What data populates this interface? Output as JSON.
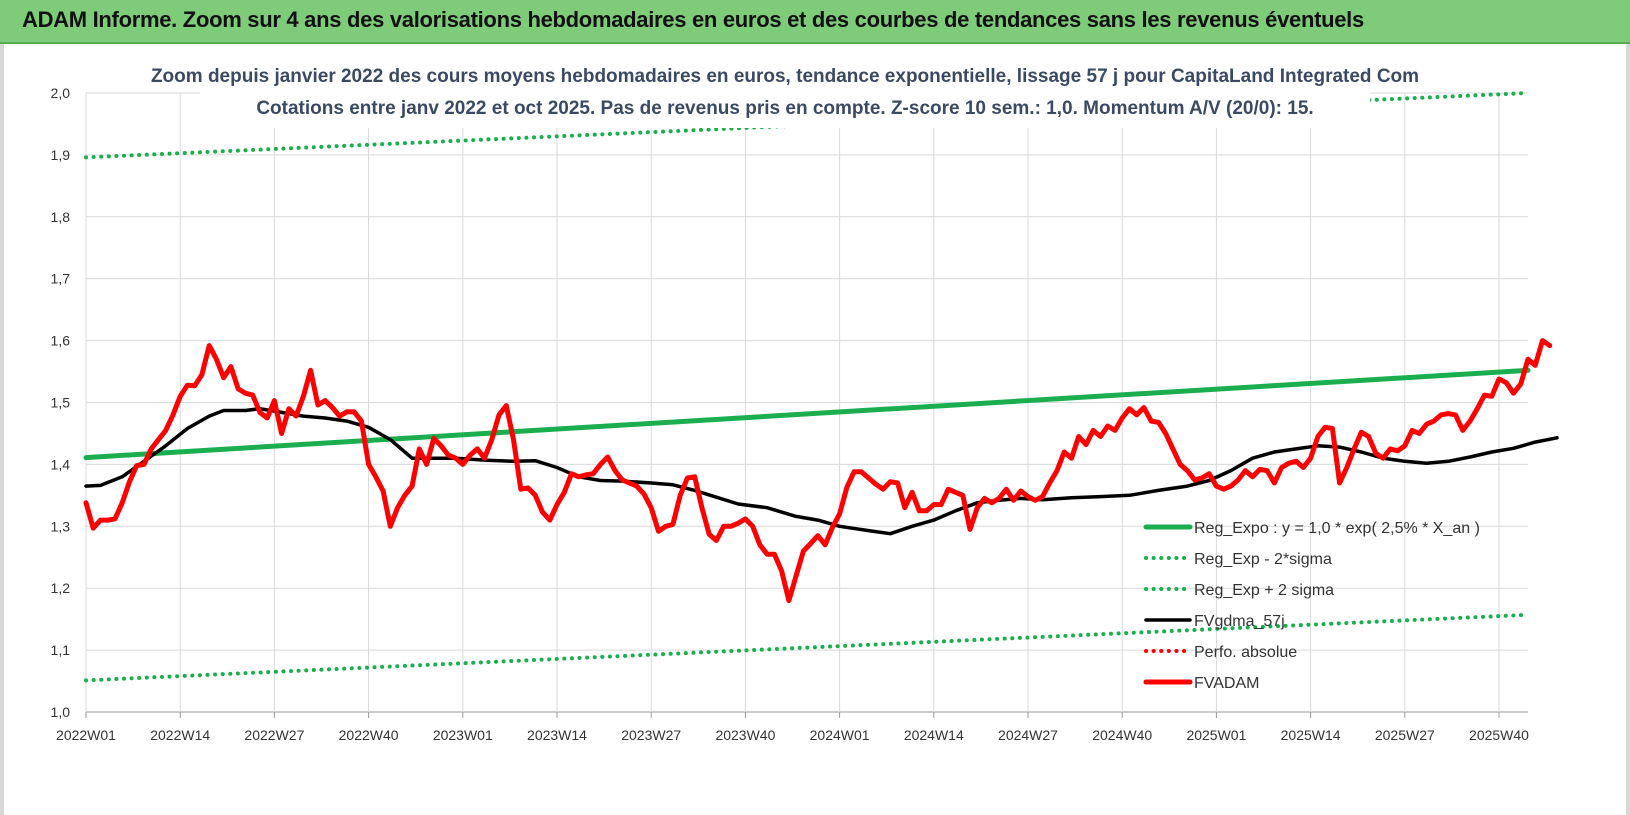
{
  "header": {
    "title": "ADAM Informe. Zoom sur 4 ans des valorisations hebdomadaires en euros et des courbes de tendances sans les revenus éventuels"
  },
  "colors": {
    "header_bg": "#7ecb7a",
    "reg_green": "#1aae4f",
    "red": "#ff0000",
    "black": "#000000",
    "grid": "#d9d9d9",
    "title_text": "#3b4a63"
  },
  "chart_data": {
    "type": "line",
    "title": "Zoom depuis janvier 2022 des cours moyens hebdomadaires en euros, tendance exponentielle, lissage 57 j pour CapitaLand Integrated Com",
    "subtitle": "Cotations entre janv 2022 et oct 2025. Pas de revenus pris en compte. Z-score 10 sem.: 1,0. Momentum A/V (20/0): 15.",
    "xlabel": "",
    "ylabel": "",
    "x_tick_labels": [
      "2022W01",
      "2022W14",
      "2022W27",
      "2022W40",
      "2023W01",
      "2023W14",
      "2023W27",
      "2023W40",
      "2024W01",
      "2024W14",
      "2024W27",
      "2024W40",
      "2025W01",
      "2025W14",
      "2025W27",
      "2025W40"
    ],
    "y_ticks": [
      "1,0",
      "1,1",
      "1,2",
      "1,3",
      "1,4",
      "1,5",
      "1,6",
      "1,7",
      "1,8",
      "1,9",
      "2,0"
    ],
    "ylim": [
      1.0,
      2.0
    ],
    "n_weeks": 200,
    "grid": true,
    "legend_position": "bottom-right",
    "series": [
      {
        "name": "Reg_Expo : y = 1,0 * exp( 2,5% *  X_an )",
        "style": "solid-thick",
        "color": "#1aae4f",
        "points": [
          [
            0,
            1.411
          ],
          [
            199,
            1.552
          ]
        ]
      },
      {
        "name": "Reg_Exp - 2*sigma",
        "style": "dotted",
        "color": "#1aae4f",
        "points": [
          [
            0,
            1.051
          ],
          [
            199,
            1.157
          ]
        ]
      },
      {
        "name": "Reg_Exp + 2 sigma",
        "style": "dotted",
        "color": "#1aae4f",
        "points": [
          [
            0,
            1.896
          ],
          [
            199,
            2.0
          ]
        ]
      },
      {
        "name": "FVgdma_57j",
        "style": "solid",
        "color": "#000000",
        "points": [
          [
            0,
            1.365
          ],
          [
            2,
            1.366
          ],
          [
            5,
            1.38
          ],
          [
            8,
            1.405
          ],
          [
            11,
            1.43
          ],
          [
            14,
            1.458
          ],
          [
            17,
            1.478
          ],
          [
            19,
            1.487
          ],
          [
            22,
            1.487
          ],
          [
            24,
            1.49
          ],
          [
            27,
            1.484
          ],
          [
            30,
            1.478
          ],
          [
            33,
            1.475
          ],
          [
            36,
            1.47
          ],
          [
            39,
            1.46
          ],
          [
            42,
            1.44
          ],
          [
            45,
            1.41
          ],
          [
            48,
            1.41
          ],
          [
            51,
            1.41
          ],
          [
            55,
            1.407
          ],
          [
            59,
            1.405
          ],
          [
            62,
            1.406
          ],
          [
            65,
            1.395
          ],
          [
            68,
            1.38
          ],
          [
            71,
            1.374
          ],
          [
            74,
            1.373
          ],
          [
            78,
            1.37
          ],
          [
            81,
            1.367
          ],
          [
            84,
            1.358
          ],
          [
            87,
            1.347
          ],
          [
            90,
            1.336
          ],
          [
            94,
            1.33
          ],
          [
            98,
            1.316
          ],
          [
            101,
            1.31
          ],
          [
            104,
            1.3
          ],
          [
            108,
            1.293
          ],
          [
            111,
            1.288
          ],
          [
            114,
            1.3
          ],
          [
            117,
            1.31
          ],
          [
            120,
            1.325
          ],
          [
            123,
            1.338
          ],
          [
            126,
            1.342
          ],
          [
            129,
            1.345
          ],
          [
            132,
            1.343
          ],
          [
            136,
            1.346
          ],
          [
            140,
            1.348
          ],
          [
            144,
            1.35
          ],
          [
            148,
            1.358
          ],
          [
            152,
            1.365
          ],
          [
            155,
            1.374
          ],
          [
            158,
            1.39
          ],
          [
            161,
            1.41
          ],
          [
            164,
            1.42
          ],
          [
            167,
            1.425
          ],
          [
            170,
            1.43
          ],
          [
            173,
            1.428
          ],
          [
            176,
            1.42
          ],
          [
            179,
            1.41
          ],
          [
            182,
            1.405
          ],
          [
            185,
            1.402
          ],
          [
            188,
            1.405
          ],
          [
            191,
            1.412
          ],
          [
            194,
            1.42
          ],
          [
            197,
            1.426
          ],
          [
            200,
            1.436
          ],
          [
            203,
            1.443
          ]
        ]
      },
      {
        "name": "Perfo. absolue",
        "style": "dotted",
        "color": "#ff0000",
        "points": []
      },
      {
        "name": "FVADAM",
        "style": "solid-thick",
        "color": "#ff0000",
        "points": [
          [
            0,
            1.338
          ],
          [
            1,
            1.297
          ],
          [
            2,
            1.31
          ],
          [
            3,
            1.31
          ],
          [
            4,
            1.312
          ],
          [
            5,
            1.338
          ],
          [
            6,
            1.372
          ],
          [
            7,
            1.398
          ],
          [
            8,
            1.4
          ],
          [
            9,
            1.425
          ],
          [
            10,
            1.44
          ],
          [
            11,
            1.455
          ],
          [
            12,
            1.48
          ],
          [
            13,
            1.51
          ],
          [
            14,
            1.528
          ],
          [
            15,
            1.527
          ],
          [
            16,
            1.545
          ],
          [
            17,
            1.592
          ],
          [
            18,
            1.57
          ],
          [
            19,
            1.54
          ],
          [
            20,
            1.558
          ],
          [
            21,
            1.522
          ],
          [
            22,
            1.515
          ],
          [
            23,
            1.512
          ],
          [
            24,
            1.484
          ],
          [
            25,
            1.475
          ],
          [
            26,
            1.503
          ],
          [
            27,
            1.45
          ],
          [
            28,
            1.49
          ],
          [
            29,
            1.478
          ],
          [
            30,
            1.51
          ],
          [
            31,
            1.552
          ],
          [
            32,
            1.496
          ],
          [
            33,
            1.503
          ],
          [
            34,
            1.492
          ],
          [
            35,
            1.478
          ],
          [
            36,
            1.485
          ],
          [
            37,
            1.485
          ],
          [
            38,
            1.47
          ],
          [
            39,
            1.4
          ],
          [
            40,
            1.38
          ],
          [
            41,
            1.357
          ],
          [
            42,
            1.3
          ],
          [
            43,
            1.33
          ],
          [
            44,
            1.35
          ],
          [
            45,
            1.365
          ],
          [
            46,
            1.425
          ],
          [
            47,
            1.4
          ],
          [
            48,
            1.442
          ],
          [
            49,
            1.43
          ],
          [
            50,
            1.415
          ],
          [
            51,
            1.41
          ],
          [
            52,
            1.4
          ],
          [
            53,
            1.415
          ],
          [
            54,
            1.425
          ],
          [
            55,
            1.41
          ],
          [
            56,
            1.44
          ],
          [
            57,
            1.48
          ],
          [
            58,
            1.495
          ],
          [
            59,
            1.44
          ],
          [
            60,
            1.36
          ],
          [
            61,
            1.362
          ],
          [
            62,
            1.35
          ],
          [
            63,
            1.323
          ],
          [
            64,
            1.31
          ],
          [
            65,
            1.335
          ],
          [
            66,
            1.355
          ],
          [
            67,
            1.385
          ],
          [
            68,
            1.38
          ],
          [
            69,
            1.383
          ],
          [
            70,
            1.385
          ],
          [
            71,
            1.4
          ],
          [
            72,
            1.412
          ],
          [
            73,
            1.39
          ],
          [
            74,
            1.375
          ],
          [
            75,
            1.37
          ],
          [
            76,
            1.365
          ],
          [
            77,
            1.352
          ],
          [
            78,
            1.33
          ],
          [
            79,
            1.292
          ],
          [
            80,
            1.3
          ],
          [
            81,
            1.303
          ],
          [
            82,
            1.35
          ],
          [
            83,
            1.378
          ],
          [
            84,
            1.38
          ],
          [
            85,
            1.33
          ],
          [
            86,
            1.287
          ],
          [
            87,
            1.277
          ],
          [
            88,
            1.3
          ],
          [
            89,
            1.3
          ],
          [
            90,
            1.305
          ],
          [
            91,
            1.312
          ],
          [
            92,
            1.3
          ],
          [
            93,
            1.27
          ],
          [
            94,
            1.255
          ],
          [
            95,
            1.255
          ],
          [
            96,
            1.228
          ],
          [
            97,
            1.18
          ],
          [
            98,
            1.22
          ],
          [
            99,
            1.26
          ],
          [
            100,
            1.272
          ],
          [
            101,
            1.285
          ],
          [
            102,
            1.27
          ],
          [
            103,
            1.298
          ],
          [
            104,
            1.32
          ],
          [
            105,
            1.363
          ],
          [
            106,
            1.388
          ],
          [
            107,
            1.388
          ],
          [
            108,
            1.378
          ],
          [
            109,
            1.368
          ],
          [
            110,
            1.36
          ],
          [
            111,
            1.372
          ],
          [
            112,
            1.37
          ],
          [
            113,
            1.33
          ],
          [
            114,
            1.355
          ],
          [
            115,
            1.325
          ],
          [
            116,
            1.325
          ],
          [
            117,
            1.335
          ],
          [
            118,
            1.335
          ],
          [
            119,
            1.36
          ],
          [
            120,
            1.355
          ],
          [
            121,
            1.35
          ],
          [
            122,
            1.295
          ],
          [
            123,
            1.33
          ],
          [
            124,
            1.345
          ],
          [
            125,
            1.338
          ],
          [
            126,
            1.345
          ],
          [
            127,
            1.36
          ],
          [
            128,
            1.342
          ],
          [
            129,
            1.357
          ],
          [
            130,
            1.348
          ],
          [
            131,
            1.342
          ],
          [
            132,
            1.348
          ],
          [
            133,
            1.37
          ],
          [
            134,
            1.39
          ],
          [
            135,
            1.42
          ],
          [
            136,
            1.41
          ],
          [
            137,
            1.445
          ],
          [
            138,
            1.432
          ],
          [
            139,
            1.455
          ],
          [
            140,
            1.445
          ],
          [
            141,
            1.462
          ],
          [
            142,
            1.455
          ],
          [
            143,
            1.475
          ],
          [
            144,
            1.49
          ],
          [
            145,
            1.48
          ],
          [
            146,
            1.492
          ],
          [
            147,
            1.47
          ],
          [
            148,
            1.468
          ],
          [
            149,
            1.45
          ],
          [
            150,
            1.425
          ],
          [
            151,
            1.4
          ],
          [
            152,
            1.39
          ],
          [
            153,
            1.375
          ],
          [
            154,
            1.378
          ],
          [
            155,
            1.385
          ],
          [
            156,
            1.365
          ],
          [
            157,
            1.36
          ],
          [
            158,
            1.365
          ],
          [
            159,
            1.375
          ],
          [
            160,
            1.39
          ],
          [
            161,
            1.38
          ],
          [
            162,
            1.392
          ],
          [
            163,
            1.39
          ],
          [
            164,
            1.37
          ],
          [
            165,
            1.395
          ],
          [
            166,
            1.402
          ],
          [
            167,
            1.405
          ],
          [
            168,
            1.395
          ],
          [
            169,
            1.41
          ],
          [
            170,
            1.445
          ],
          [
            171,
            1.46
          ],
          [
            172,
            1.458
          ],
          [
            173,
            1.37
          ],
          [
            174,
            1.395
          ],
          [
            175,
            1.425
          ],
          [
            176,
            1.452
          ],
          [
            177,
            1.445
          ],
          [
            178,
            1.418
          ],
          [
            179,
            1.41
          ],
          [
            180,
            1.425
          ],
          [
            181,
            1.422
          ],
          [
            182,
            1.43
          ],
          [
            183,
            1.455
          ],
          [
            184,
            1.45
          ],
          [
            185,
            1.465
          ],
          [
            186,
            1.47
          ],
          [
            187,
            1.48
          ],
          [
            188,
            1.482
          ],
          [
            189,
            1.48
          ],
          [
            190,
            1.455
          ],
          [
            191,
            1.47
          ],
          [
            192,
            1.49
          ],
          [
            193,
            1.512
          ],
          [
            194,
            1.51
          ],
          [
            195,
            1.538
          ],
          [
            196,
            1.532
          ],
          [
            197,
            1.515
          ],
          [
            198,
            1.53
          ],
          [
            199,
            1.57
          ],
          [
            200,
            1.56
          ],
          [
            201,
            1.6
          ],
          [
            202,
            1.592
          ]
        ]
      }
    ]
  }
}
